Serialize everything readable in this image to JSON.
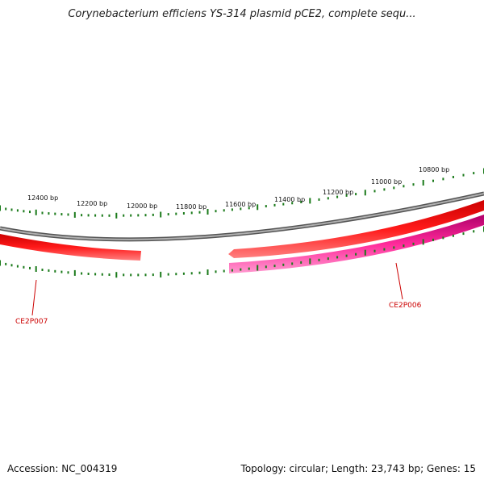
{
  "title": "Corynebacterium efficiens YS-314 plasmid pCE2, complete sequ...",
  "footer": {
    "accession": "Accession: NC_004319",
    "summary": "Topology: circular; Length: 23,743 bp; Genes: 15"
  },
  "scale": {
    "labels": [
      "12400 bp",
      "12200 bp",
      "12000 bp",
      "11800 bp",
      "11600 bp",
      "11400 bp",
      "11200 bp",
      "11000 bp",
      "10800 bp"
    ],
    "tick_color": "#1a7a1a"
  },
  "genes": [
    {
      "name": "CE2P007",
      "color": "#ff1a1a",
      "label_color": "#cc0000"
    },
    {
      "name": "CE2P006",
      "color": "#ff2a9a",
      "label_color": "#cc0000"
    },
    {
      "name": "",
      "color": "#ff1a1a"
    }
  ],
  "backbone_color": "#888888"
}
